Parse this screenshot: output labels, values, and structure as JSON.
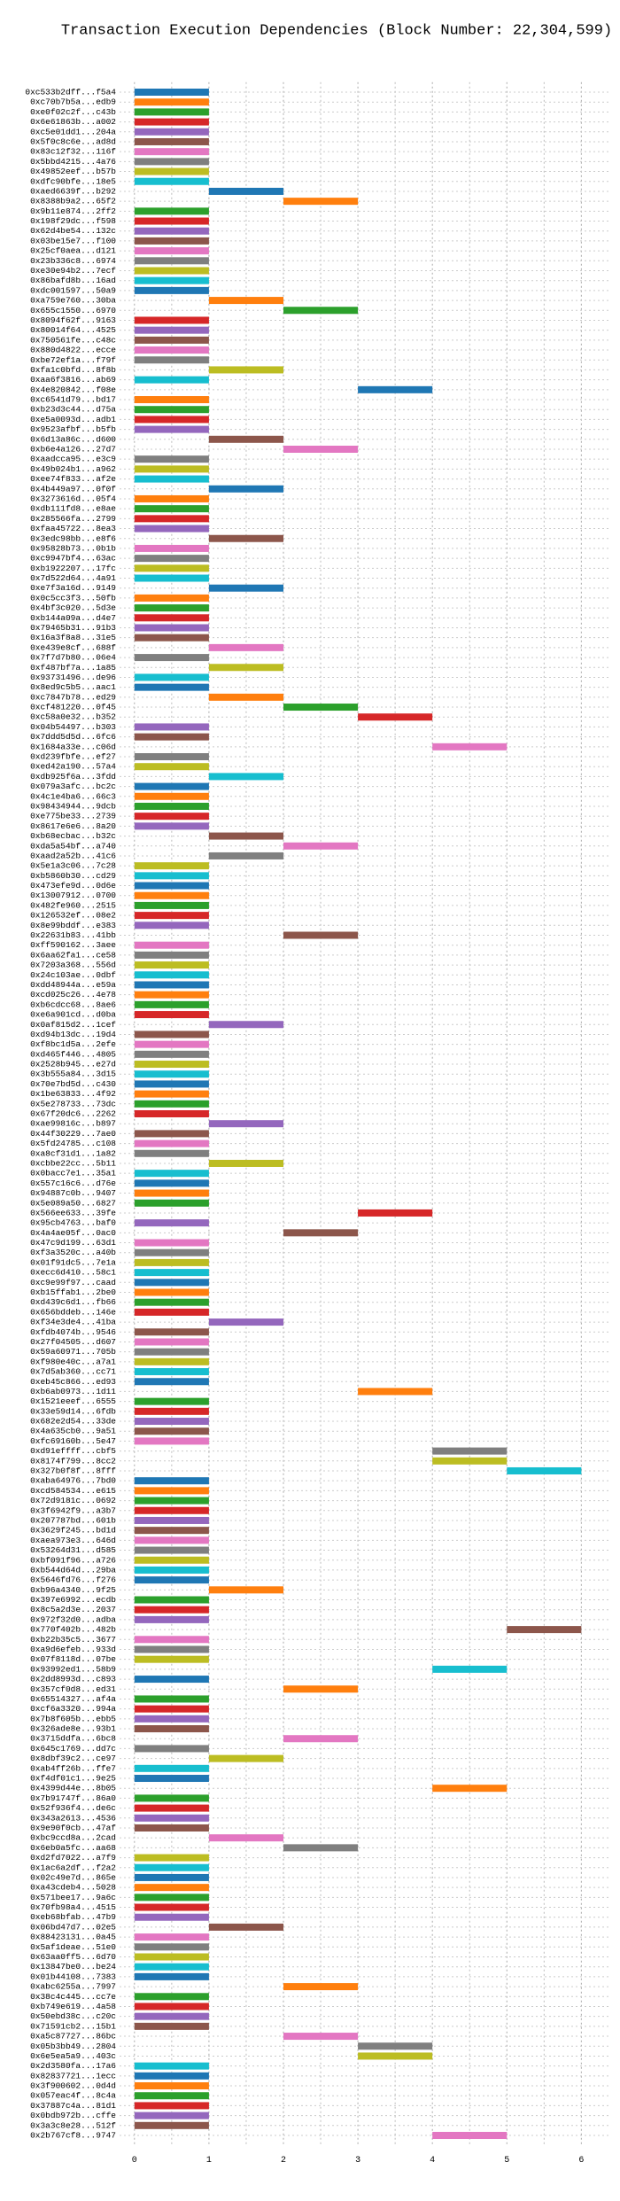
{
  "chart_data": {
    "type": "gantt",
    "title": "Transaction Execution Dependencies (Block Number: 22,304,599)",
    "categories": [
      "0xc533b2dff...f5a4",
      "0xc70b7b5a...edb9",
      "0xe0f02c2f...c43b",
      "0x6e61863b...a002",
      "0xc5e01dd1...204a",
      "0x5f0c8c6e...ad8d",
      "0x83c12f32...116f",
      "0x5bbd4215...4a76",
      "0x49852eef...b57b",
      "0xdfc90bfe...18e5",
      "0xaed6639f...b292",
      "0x8388b9a2...65f2",
      "0x9b11e874...2ff2",
      "0x198f29dc...f598",
      "0x62d4be54...132c",
      "0x03be15e7...f100",
      "0x25cf0aea...d121",
      "0x23b336c8...6974",
      "0xe30e94b2...7ecf",
      "0x86bafd8b...16ad",
      "0xdc001597...50a9",
      "0xa759e760...30ba",
      "0x655c1550...6970",
      "0x8094f62f...9163",
      "0x80014f64...4525",
      "0x750561fe...c48c",
      "0x880d4822...ecce",
      "0xbe72ef1a...f79f",
      "0xfa1c0bfd...8f8b",
      "0xaa6f3816...ab69",
      "0x4e820842...f08e",
      "0xc6541d79...bd17",
      "0xb23d3c44...d75a",
      "0xe5a0093d...adb1",
      "0x9523afbf...b5fb",
      "0x6d13a86c...d600",
      "0xb6e4a126...27d7",
      "0xaadcca95...e3c9",
      "0x49b024b1...a962",
      "0xee74f833...af2e",
      "0x4b449a97...0f0f",
      "0x3273616d...05f4",
      "0xdb111fd8...e8ae",
      "0x285566fa...2799",
      "0xfaa45722...8ea3",
      "0x3edc98bb...e8f6",
      "0x95828b73...0b1b",
      "0xc9947bf4...63ac",
      "0xb1922207...17fc",
      "0x7d522d64...4a91",
      "0xe7f3a16d...9149",
      "0x0c5cc3f3...50fb",
      "0x4bf3c020...5d3e",
      "0xb144a09a...d4e7",
      "0x79465b31...91b3",
      "0x16a3f8a8...31e5",
      "0xe439e8cf...688f",
      "0x7f7d7b80...06e4",
      "0xf487bf7a...1a85",
      "0x93731496...de96",
      "0x8ed9c5b5...aac1",
      "0xc7847b78...ed29",
      "0xcf481220...0f45",
      "0xc58a0e32...b352",
      "0x04b54497...b303",
      "0x7ddd5d5d...6fc6",
      "0x1684a33e...c06d",
      "0xd239fbfe...ef27",
      "0xed42a190...57a4",
      "0xdb925f6a...3fdd",
      "0x079a3afc...bc2c",
      "0x4c1e4ba6...66c3",
      "0x98434944...9dcb",
      "0xe775be33...2739",
      "0x8617e6e6...8a20",
      "0xb68ecbac...b32c",
      "0xda5a54bf...a740",
      "0xaad2a52b...41c6",
      "0x5e1a3c06...7c28",
      "0xb5860b30...cd29",
      "0x473efe9d...0d6e",
      "0x13007912...0700",
      "0x482fe960...2515",
      "0x126532ef...08e2",
      "0x8e99bddf...e383",
      "0x22631b83...41bb",
      "0xff590162...3aee",
      "0x6aa62fa1...ce58",
      "0x7203a368...556d",
      "0x24c103ae...0dbf",
      "0xdd48944a...e59a",
      "0xcd025c26...4e78",
      "0xb6cdcc68...8ae6",
      "0xe6a901cd...d0ba",
      "0x0af815d2...1cef",
      "0xd94b13dc...19d4",
      "0xf8bc1d5a...2efe",
      "0xd465f446...4805",
      "0x2528b945...e27d",
      "0x3b555a84...3d15",
      "0x70e7bd5d...c430",
      "0x1be63833...4f92",
      "0x5e278733...73dc",
      "0x67f20dc6...2262",
      "0xae99816c...b897",
      "0x44f30229...7ae0",
      "0x5fd24785...c108",
      "0xa8cf31d1...1a82",
      "0xcbbe22cc...5b11",
      "0x0bacc7e1...35a1",
      "0x557c16c6...d76e",
      "0x94887c0b...9407",
      "0x5e089a50...6827",
      "0x566ee633...39fe",
      "0x95cb4763...baf0",
      "0x4a4ae05f...0ac0",
      "0x47c9d199...63d1",
      "0xf3a3520c...a40b",
      "0x01f91dc5...7e1a",
      "0xecc6d410...58c1",
      "0xc9e99f97...caad",
      "0xb15ffab1...2be0",
      "0xd439c6d1...fb66",
      "0x656bddeb...146e",
      "0xf34e3de4...41ba",
      "0xfdb4074b...9546",
      "0x27f04505...d607",
      "0x59a60971...705b",
      "0xf980e40c...a7a1",
      "0x7d5ab360...cc71",
      "0xeb45c866...ed93",
      "0xb6ab0973...1d11",
      "0x1521eeef...6555",
      "0x33e59d14...6fdb",
      "0x682e2d54...33de",
      "0x4a635cb0...9a51",
      "0xfc69160b...5e47",
      "0xd91effff...cbf5",
      "0x8174f799...8cc2",
      "0x327b0f8f...8fff",
      "0xaba64976...7bd0",
      "0xcd584534...e615",
      "0x72d9181c...0692",
      "0x3f6942f9...a3b7",
      "0x207787bd...601b",
      "0x3629f245...bd1d",
      "0xaea973e3...646d",
      "0x53264d31...d585",
      "0xbf091f96...a726",
      "0xb544d64d...29ba",
      "0x5646fd76...f276",
      "0xb96a4340...9f25",
      "0x397e6992...ecdb",
      "0x8c5a2d3e...2037",
      "0x972f32d0...adba",
      "0x770f402b...482b",
      "0xb22b35c5...3677",
      "0xa9d6efeb...933d",
      "0x07f8118d...07be",
      "0x93992ed1...58b9",
      "0x2dd8993d...c893",
      "0x357cf0d8...ed31",
      "0x65514327...af4a",
      "0xcf6a3320...994a",
      "0x7b8f605b...ebb5",
      "0x326ade8e...93b1",
      "0x3715ddfa...6bc8",
      "0x645c1769...dd7c",
      "0x8dbf39c2...ce97",
      "0xab4ff26b...ffe7",
      "0xf4df01c1...9e25",
      "0x4399d44e...8b05",
      "0x7b91747f...86a0",
      "0x52f936f4...de6c",
      "0x343a2613...4536",
      "0x9e90f0cb...47af",
      "0xbc9ccd8a...2cad",
      "0x6eb0a5fc...aa68",
      "0xd2fd7022...a7f9",
      "0x1ac6a2df...f2a2",
      "0x02c49e7d...865e",
      "0xa43cdeb4...5028",
      "0x571bee17...9a6c",
      "0x70fb98a4...4515",
      "0xeb68bfab...47b9",
      "0x06bd47d7...02e5",
      "0x88423131...0a45",
      "0x5af1deae...51e0",
      "0x63aa0ff5...6d70",
      "0x13847be0...be24",
      "0x01b44108...7383",
      "0xabc6255a...7997",
      "0x38c4c445...cc7e",
      "0xb749e619...4a58",
      "0x50ebd38c...c20c",
      "0x71591cb2...15b1",
      "0xa5c87727...86bc",
      "0x05b3bb49...2804",
      "0x6e5ea5a9...403c",
      "0x2d3580fa...17a6",
      "0x82837721...1ecc",
      "0x3f900602...0d4d",
      "0x057eac4f...8c4a",
      "0x37887c4a...81d1",
      "0x0bdb972b...cffe",
      "0x3a3c8e28...512f",
      "0x2b767cf8...9747"
    ],
    "start": [
      0,
      0,
      0,
      0,
      0,
      0,
      0,
      0,
      0,
      0,
      1,
      2,
      0,
      0,
      0,
      0,
      0,
      0,
      0,
      0,
      0,
      1,
      2,
      0,
      0,
      0,
      0,
      0,
      1,
      0,
      3,
      0,
      0,
      0,
      0,
      1,
      2,
      0,
      0,
      0,
      1,
      0,
      0,
      0,
      0,
      1,
      0,
      0,
      0,
      0,
      1,
      0,
      0,
      0,
      0,
      0,
      1,
      0,
      1,
      0,
      0,
      1,
      2,
      3,
      0,
      0,
      4,
      0,
      0,
      1,
      0,
      0,
      0,
      0,
      0,
      1,
      2,
      1,
      0,
      0,
      0,
      0,
      0,
      0,
      0,
      2,
      0,
      0,
      0,
      0,
      0,
      0,
      0,
      0,
      1,
      0,
      0,
      0,
      0,
      0,
      0,
      0,
      0,
      0,
      1,
      0,
      0,
      0,
      1,
      0,
      0,
      0,
      0,
      3,
      0,
      2,
      0,
      0,
      0,
      0,
      0,
      0,
      0,
      0,
      1,
      0,
      0,
      0,
      0,
      0,
      0,
      3,
      0,
      0,
      0,
      0,
      0,
      4,
      4,
      5,
      0,
      0,
      0,
      0,
      0,
      0,
      0,
      0,
      0,
      0,
      0,
      1,
      0,
      0,
      0,
      5,
      0,
      0,
      0,
      4,
      0,
      2,
      0,
      0,
      0,
      0,
      2,
      0,
      1,
      0,
      0,
      4,
      0,
      0,
      0,
      0,
      1,
      2,
      0,
      0,
      0,
      0,
      0,
      0,
      0,
      1,
      0,
      0,
      0,
      0,
      0,
      2,
      0,
      0,
      0,
      0,
      2,
      3,
      3,
      0,
      0,
      0,
      0,
      0,
      0,
      0,
      4
    ],
    "end": [
      1,
      1,
      1,
      1,
      1,
      1,
      1,
      1,
      1,
      1,
      2,
      3,
      1,
      1,
      1,
      1,
      1,
      1,
      1,
      1,
      1,
      2,
      3,
      1,
      1,
      1,
      1,
      1,
      2,
      1,
      4,
      1,
      1,
      1,
      1,
      2,
      3,
      1,
      1,
      1,
      2,
      1,
      1,
      1,
      1,
      2,
      1,
      1,
      1,
      1,
      2,
      1,
      1,
      1,
      1,
      1,
      2,
      1,
      2,
      1,
      1,
      2,
      3,
      4,
      1,
      1,
      5,
      1,
      1,
      2,
      1,
      1,
      1,
      1,
      1,
      2,
      3,
      2,
      1,
      1,
      1,
      1,
      1,
      1,
      1,
      3,
      1,
      1,
      1,
      1,
      1,
      1,
      1,
      1,
      2,
      1,
      1,
      1,
      1,
      1,
      1,
      1,
      1,
      1,
      2,
      1,
      1,
      1,
      2,
      1,
      1,
      1,
      1,
      4,
      1,
      3,
      1,
      1,
      1,
      1,
      1,
      1,
      1,
      1,
      2,
      1,
      1,
      1,
      1,
      1,
      1,
      4,
      1,
      1,
      1,
      1,
      1,
      5,
      5,
      6,
      1,
      1,
      1,
      1,
      1,
      1,
      1,
      1,
      1,
      1,
      1,
      2,
      1,
      1,
      1,
      6,
      1,
      1,
      1,
      5,
      1,
      3,
      1,
      1,
      1,
      1,
      3,
      1,
      2,
      1,
      1,
      5,
      1,
      1,
      1,
      1,
      2,
      3,
      1,
      1,
      1,
      1,
      1,
      1,
      1,
      2,
      1,
      1,
      1,
      1,
      1,
      3,
      1,
      1,
      1,
      1,
      3,
      4,
      4,
      1,
      1,
      1,
      1,
      1,
      1,
      1,
      5
    ],
    "colors": [
      "#1f77b4",
      "#ff7f0e",
      "#2ca02c",
      "#d62728",
      "#9467bd",
      "#8c564b",
      "#e377c2",
      "#7f7f7f",
      "#bcbd22",
      "#17becf"
    ],
    "xlim": [
      -0.2,
      6.4
    ],
    "xticks": [
      0,
      1,
      2,
      3,
      4,
      5,
      6
    ],
    "x_minor_ticks": [
      0.5,
      1.5,
      2.5,
      3.5,
      4.5,
      5.5
    ],
    "grid": true
  }
}
